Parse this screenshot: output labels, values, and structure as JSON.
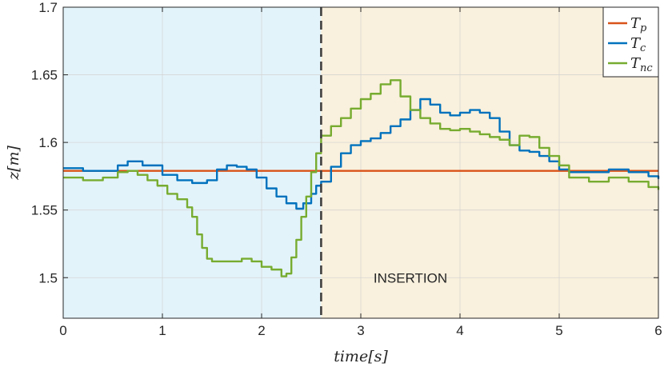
{
  "chart_data": {
    "type": "line",
    "xlabel": "time[s]",
    "ylabel": "z[m]",
    "xlim": [
      0,
      6
    ],
    "ylim": [
      1.47,
      1.7
    ],
    "xticks": [
      0,
      1,
      2,
      3,
      4,
      5,
      6
    ],
    "yticks": [
      1.5,
      1.55,
      1.6,
      1.65,
      1.7
    ],
    "grid": true,
    "legend_position": "top-right",
    "regions": [
      {
        "x": [
          0,
          2.6
        ],
        "color": "#e3f3fa"
      },
      {
        "x": [
          2.6,
          6
        ],
        "color": "#f9f0dd",
        "label": "INSERTION"
      }
    ],
    "vline": {
      "x": 2.6,
      "style": "dashed",
      "color": "#404040"
    },
    "annotation": {
      "text": "INSERTION",
      "x": 3.5,
      "y": 1.5
    },
    "series": [
      {
        "name": "Tp",
        "legend_main": "T",
        "legend_sub": "p",
        "color": "#d95319",
        "step": false,
        "x": [
          0,
          6
        ],
        "y": [
          1.579,
          1.579
        ]
      },
      {
        "name": "Tc",
        "legend_main": "T",
        "legend_sub": "c",
        "color": "#0072bd",
        "step": true,
        "x": [
          0,
          0.2,
          0.4,
          0.55,
          0.65,
          0.8,
          1.0,
          1.15,
          1.3,
          1.45,
          1.55,
          1.65,
          1.75,
          1.85,
          1.95,
          2.05,
          2.15,
          2.25,
          2.35,
          2.42,
          2.5,
          2.55,
          2.6,
          2.7,
          2.8,
          2.9,
          3.0,
          3.1,
          3.2,
          3.3,
          3.4,
          3.5,
          3.6,
          3.7,
          3.8,
          3.9,
          4.0,
          4.1,
          4.2,
          4.3,
          4.4,
          4.5,
          4.6,
          4.7,
          4.8,
          4.9,
          5.0,
          5.1,
          5.3,
          5.5,
          5.7,
          5.9,
          6.0
        ],
        "y": [
          1.581,
          1.579,
          1.579,
          1.583,
          1.586,
          1.583,
          1.576,
          1.572,
          1.57,
          1.572,
          1.58,
          1.583,
          1.582,
          1.58,
          1.574,
          1.566,
          1.56,
          1.555,
          1.551,
          1.555,
          1.562,
          1.568,
          1.571,
          1.582,
          1.592,
          1.598,
          1.601,
          1.603,
          1.607,
          1.612,
          1.617,
          1.624,
          1.632,
          1.628,
          1.622,
          1.62,
          1.622,
          1.624,
          1.622,
          1.618,
          1.608,
          1.598,
          1.594,
          1.593,
          1.59,
          1.586,
          1.58,
          1.578,
          1.578,
          1.58,
          1.578,
          1.575,
          1.573
        ]
      },
      {
        "name": "Tnc",
        "legend_main": "T",
        "legend_sub": "nc",
        "color": "#77ac30",
        "step": true,
        "x": [
          0,
          0.2,
          0.4,
          0.55,
          0.65,
          0.75,
          0.85,
          0.95,
          1.05,
          1.15,
          1.25,
          1.3,
          1.35,
          1.4,
          1.45,
          1.5,
          1.6,
          1.8,
          1.9,
          2.0,
          2.1,
          2.2,
          2.25,
          2.3,
          2.35,
          2.4,
          2.45,
          2.5,
          2.55,
          2.6,
          2.7,
          2.8,
          2.9,
          3.0,
          3.1,
          3.2,
          3.3,
          3.4,
          3.5,
          3.6,
          3.7,
          3.8,
          3.9,
          4.0,
          4.1,
          4.2,
          4.3,
          4.4,
          4.5,
          4.6,
          4.7,
          4.8,
          4.9,
          5.0,
          5.1,
          5.3,
          5.5,
          5.7,
          5.9,
          6.0
        ],
        "y": [
          1.574,
          1.572,
          1.574,
          1.578,
          1.579,
          1.576,
          1.572,
          1.568,
          1.562,
          1.558,
          1.552,
          1.545,
          1.532,
          1.522,
          1.514,
          1.512,
          1.512,
          1.514,
          1.512,
          1.508,
          1.506,
          1.501,
          1.503,
          1.515,
          1.528,
          1.545,
          1.56,
          1.578,
          1.592,
          1.605,
          1.612,
          1.618,
          1.625,
          1.632,
          1.636,
          1.643,
          1.646,
          1.634,
          1.624,
          1.618,
          1.614,
          1.61,
          1.609,
          1.61,
          1.608,
          1.606,
          1.604,
          1.602,
          1.598,
          1.605,
          1.604,
          1.596,
          1.59,
          1.583,
          1.574,
          1.571,
          1.574,
          1.571,
          1.567,
          1.565
        ]
      }
    ]
  }
}
